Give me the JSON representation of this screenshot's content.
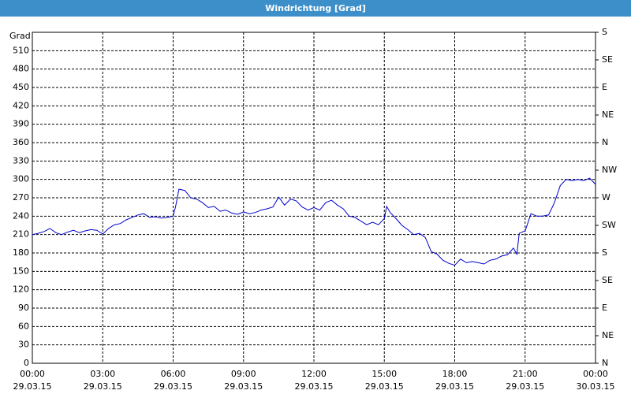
{
  "chart_data": {
    "type": "line",
    "title": "Windrichtung [Grad]",
    "y_label": "Grad",
    "x": [
      0,
      0.25,
      0.5,
      0.75,
      1,
      1.25,
      1.5,
      1.75,
      2,
      2.25,
      2.5,
      2.75,
      3,
      3.25,
      3.5,
      3.75,
      4,
      4.25,
      4.5,
      4.75,
      5,
      5.25,
      5.5,
      5.75,
      6,
      6.1,
      6.25,
      6.5,
      6.75,
      7,
      7.25,
      7.5,
      7.75,
      8,
      8.25,
      8.5,
      8.75,
      9,
      9.25,
      9.5,
      9.75,
      10,
      10.25,
      10.5,
      10.75,
      11,
      11.25,
      11.5,
      11.75,
      12,
      12.25,
      12.5,
      12.75,
      13,
      13.25,
      13.5,
      13.75,
      14,
      14.25,
      14.5,
      14.75,
      15,
      15.1,
      15.25,
      15.5,
      15.75,
      16,
      16.25,
      16.5,
      16.75,
      17,
      17.25,
      17.5,
      17.75,
      18,
      18.25,
      18.5,
      18.75,
      19,
      19.25,
      19.5,
      19.75,
      20,
      20.25,
      20.5,
      20.65,
      20.75,
      21,
      21.25,
      21.5,
      21.75,
      22,
      22.25,
      22.5,
      22.75,
      23,
      23.25,
      23.5,
      23.75,
      24
    ],
    "series": [
      {
        "color": "#0000cc",
        "values": [
          210,
          212,
          215,
          220,
          213,
          210,
          214,
          217,
          213,
          216,
          218,
          217,
          211,
          220,
          226,
          228,
          234,
          238,
          242,
          244,
          238,
          239,
          237,
          238,
          240,
          255,
          284,
          282,
          270,
          268,
          262,
          254,
          256,
          248,
          250,
          245,
          243,
          247,
          244,
          246,
          250,
          252,
          255,
          271,
          258,
          268,
          265,
          255,
          250,
          254,
          250,
          262,
          266,
          258,
          252,
          240,
          238,
          232,
          226,
          230,
          226,
          236,
          256,
          246,
          236,
          225,
          218,
          210,
          212,
          205,
          182,
          178,
          168,
          163,
          160,
          170,
          164,
          166,
          164,
          162,
          168,
          170,
          175,
          177,
          188,
          178,
          212,
          216,
          244,
          240,
          240,
          242,
          262,
          290,
          300,
          298,
          300,
          298,
          302,
          292
        ]
      }
    ],
    "xlim": [
      0,
      24
    ],
    "xticks": [
      {
        "value": 0,
        "label": [
          "00:00",
          "29.03.15"
        ]
      },
      {
        "value": 3,
        "label": [
          "03:00",
          "29.03.15"
        ]
      },
      {
        "value": 6,
        "label": [
          "06:00",
          "29.03.15"
        ]
      },
      {
        "value": 9,
        "label": [
          "09:00",
          "29.03.15"
        ]
      },
      {
        "value": 12,
        "label": [
          "12:00",
          "29.03.15"
        ]
      },
      {
        "value": 15,
        "label": [
          "15:00",
          "29.03.15"
        ]
      },
      {
        "value": 18,
        "label": [
          "18:00",
          "29.03.15"
        ]
      },
      {
        "value": 21,
        "label": [
          "21:00",
          "29.03.15"
        ]
      },
      {
        "value": 24,
        "label": [
          "00:00",
          "30.03.15"
        ]
      }
    ],
    "ylim": [
      0,
      540
    ],
    "yticks": [
      0,
      30,
      60,
      90,
      120,
      150,
      180,
      210,
      240,
      270,
      300,
      330,
      360,
      390,
      420,
      450,
      480,
      510
    ],
    "y2lim": [
      0,
      540
    ],
    "y2ticks": [
      {
        "value": 0,
        "label": "N"
      },
      {
        "value": 45,
        "label": "NE"
      },
      {
        "value": 90,
        "label": "E"
      },
      {
        "value": 135,
        "label": "SE"
      },
      {
        "value": 180,
        "label": "S"
      },
      {
        "value": 225,
        "label": "SW"
      },
      {
        "value": 270,
        "label": "W"
      },
      {
        "value": 315,
        "label": "NW"
      },
      {
        "value": 360,
        "label": "N"
      },
      {
        "value": 405,
        "label": "NE"
      },
      {
        "value": 450,
        "label": "E"
      },
      {
        "value": 495,
        "label": "SE"
      },
      {
        "value": 540,
        "label": "S"
      }
    ],
    "grid": true
  }
}
